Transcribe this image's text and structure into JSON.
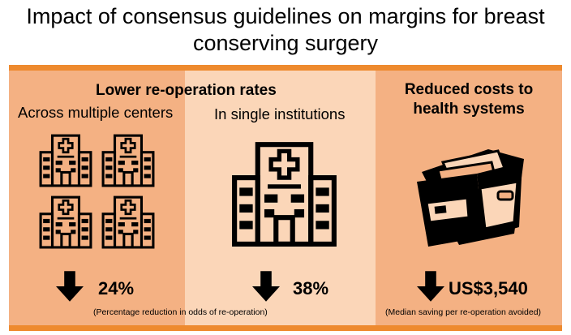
{
  "title": "Impact of consensus guidelines on margins for breast conserving surgery",
  "colors": {
    "band": "#ee8a2e",
    "panel_dark": "#f4b183",
    "panel_light": "#fbd6b8"
  },
  "reoperation": {
    "heading": "Lower re-operation rates",
    "multi_center": {
      "label": "Across multiple centers",
      "value": "24%",
      "icon": "hospital-buildings-icon"
    },
    "single_institution": {
      "label": "In single institutions",
      "value": "38%",
      "icon": "hospital-building-icon"
    },
    "note": "(Percentage reduction in odds of re-operation)"
  },
  "costs": {
    "heading_line1": "Reduced costs to",
    "heading_line2": "health systems",
    "value": "US$3,540",
    "note": "(Median saving per re-operation avoided)",
    "icon": "wallet-icon"
  }
}
